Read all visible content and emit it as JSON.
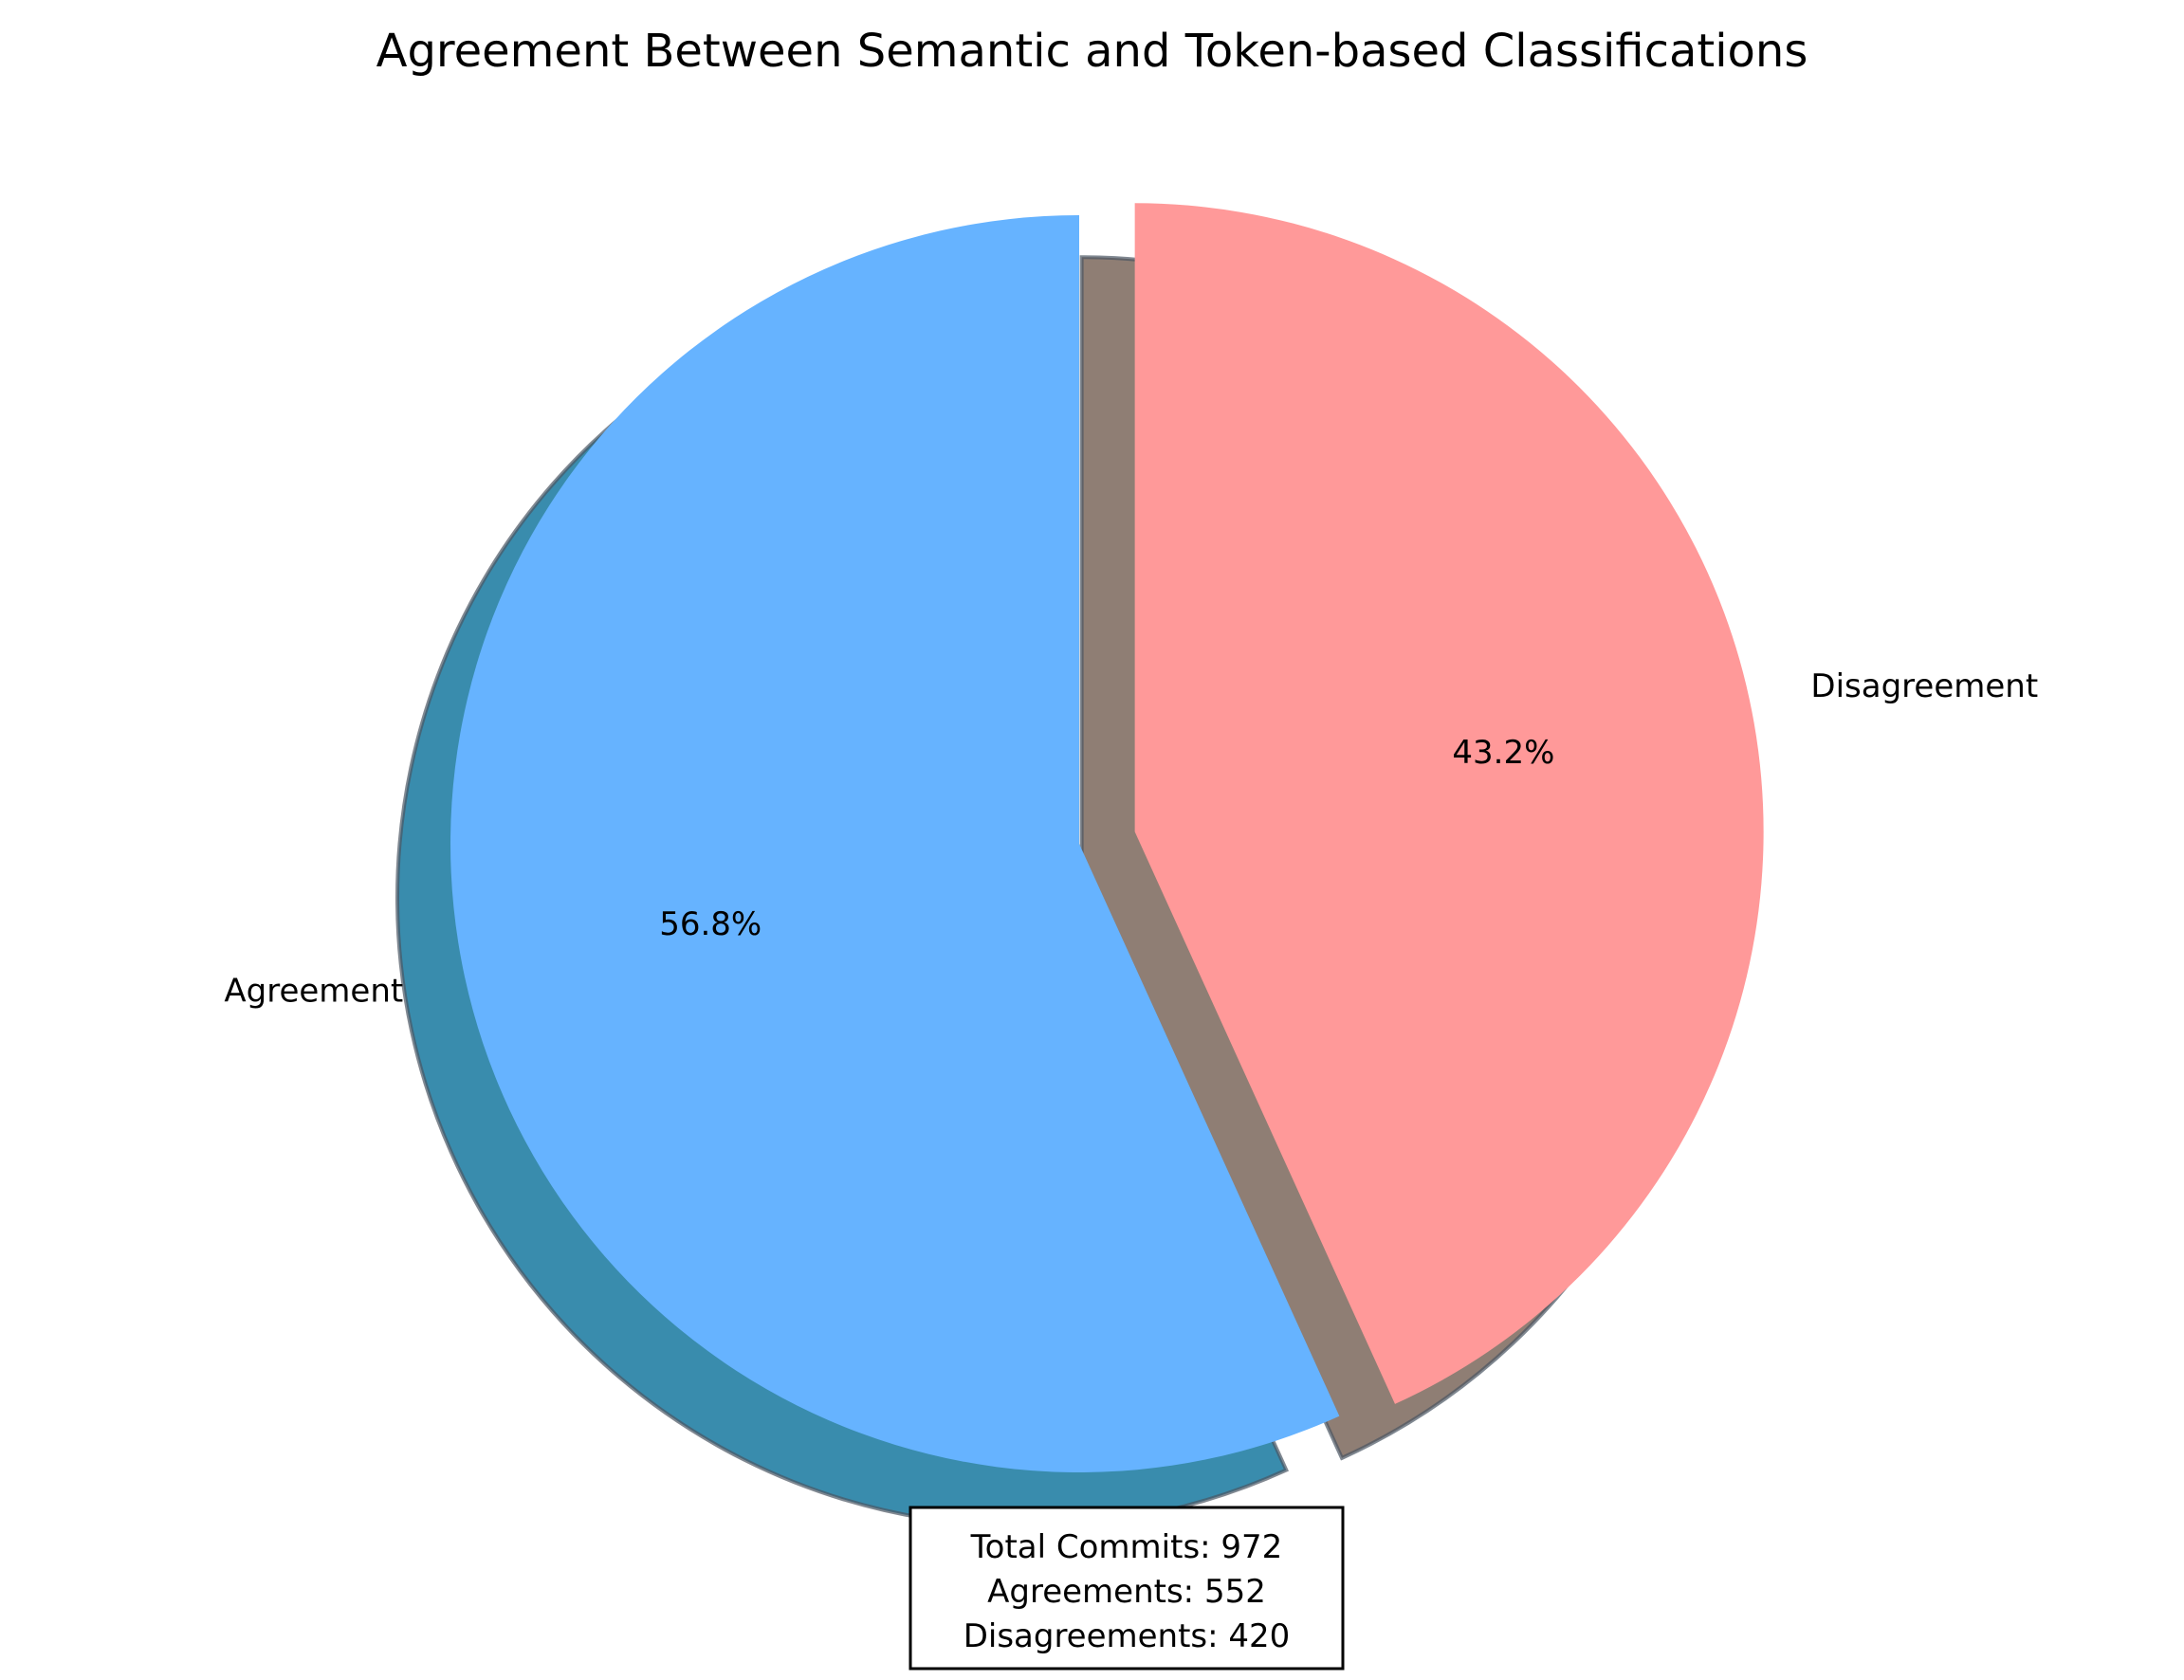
{
  "chart_data": {
    "type": "pie",
    "title": "Agreement Between Semantic and Token-based Classifications",
    "start_angle": "90 degrees, counterclockwise",
    "shadow": true,
    "slices": [
      {
        "label": "Agreement",
        "value": 552,
        "percent_label": "56.8%",
        "color": "#66b3ff",
        "exploded": false
      },
      {
        "label": "Disagreement",
        "value": 420,
        "percent_label": "43.2%",
        "color": "#ff9999",
        "exploded": true
      }
    ],
    "annotation": {
      "lines": [
        "Total Commits: 972",
        "Agreements: 552",
        "Disagreements: 420"
      ]
    }
  }
}
